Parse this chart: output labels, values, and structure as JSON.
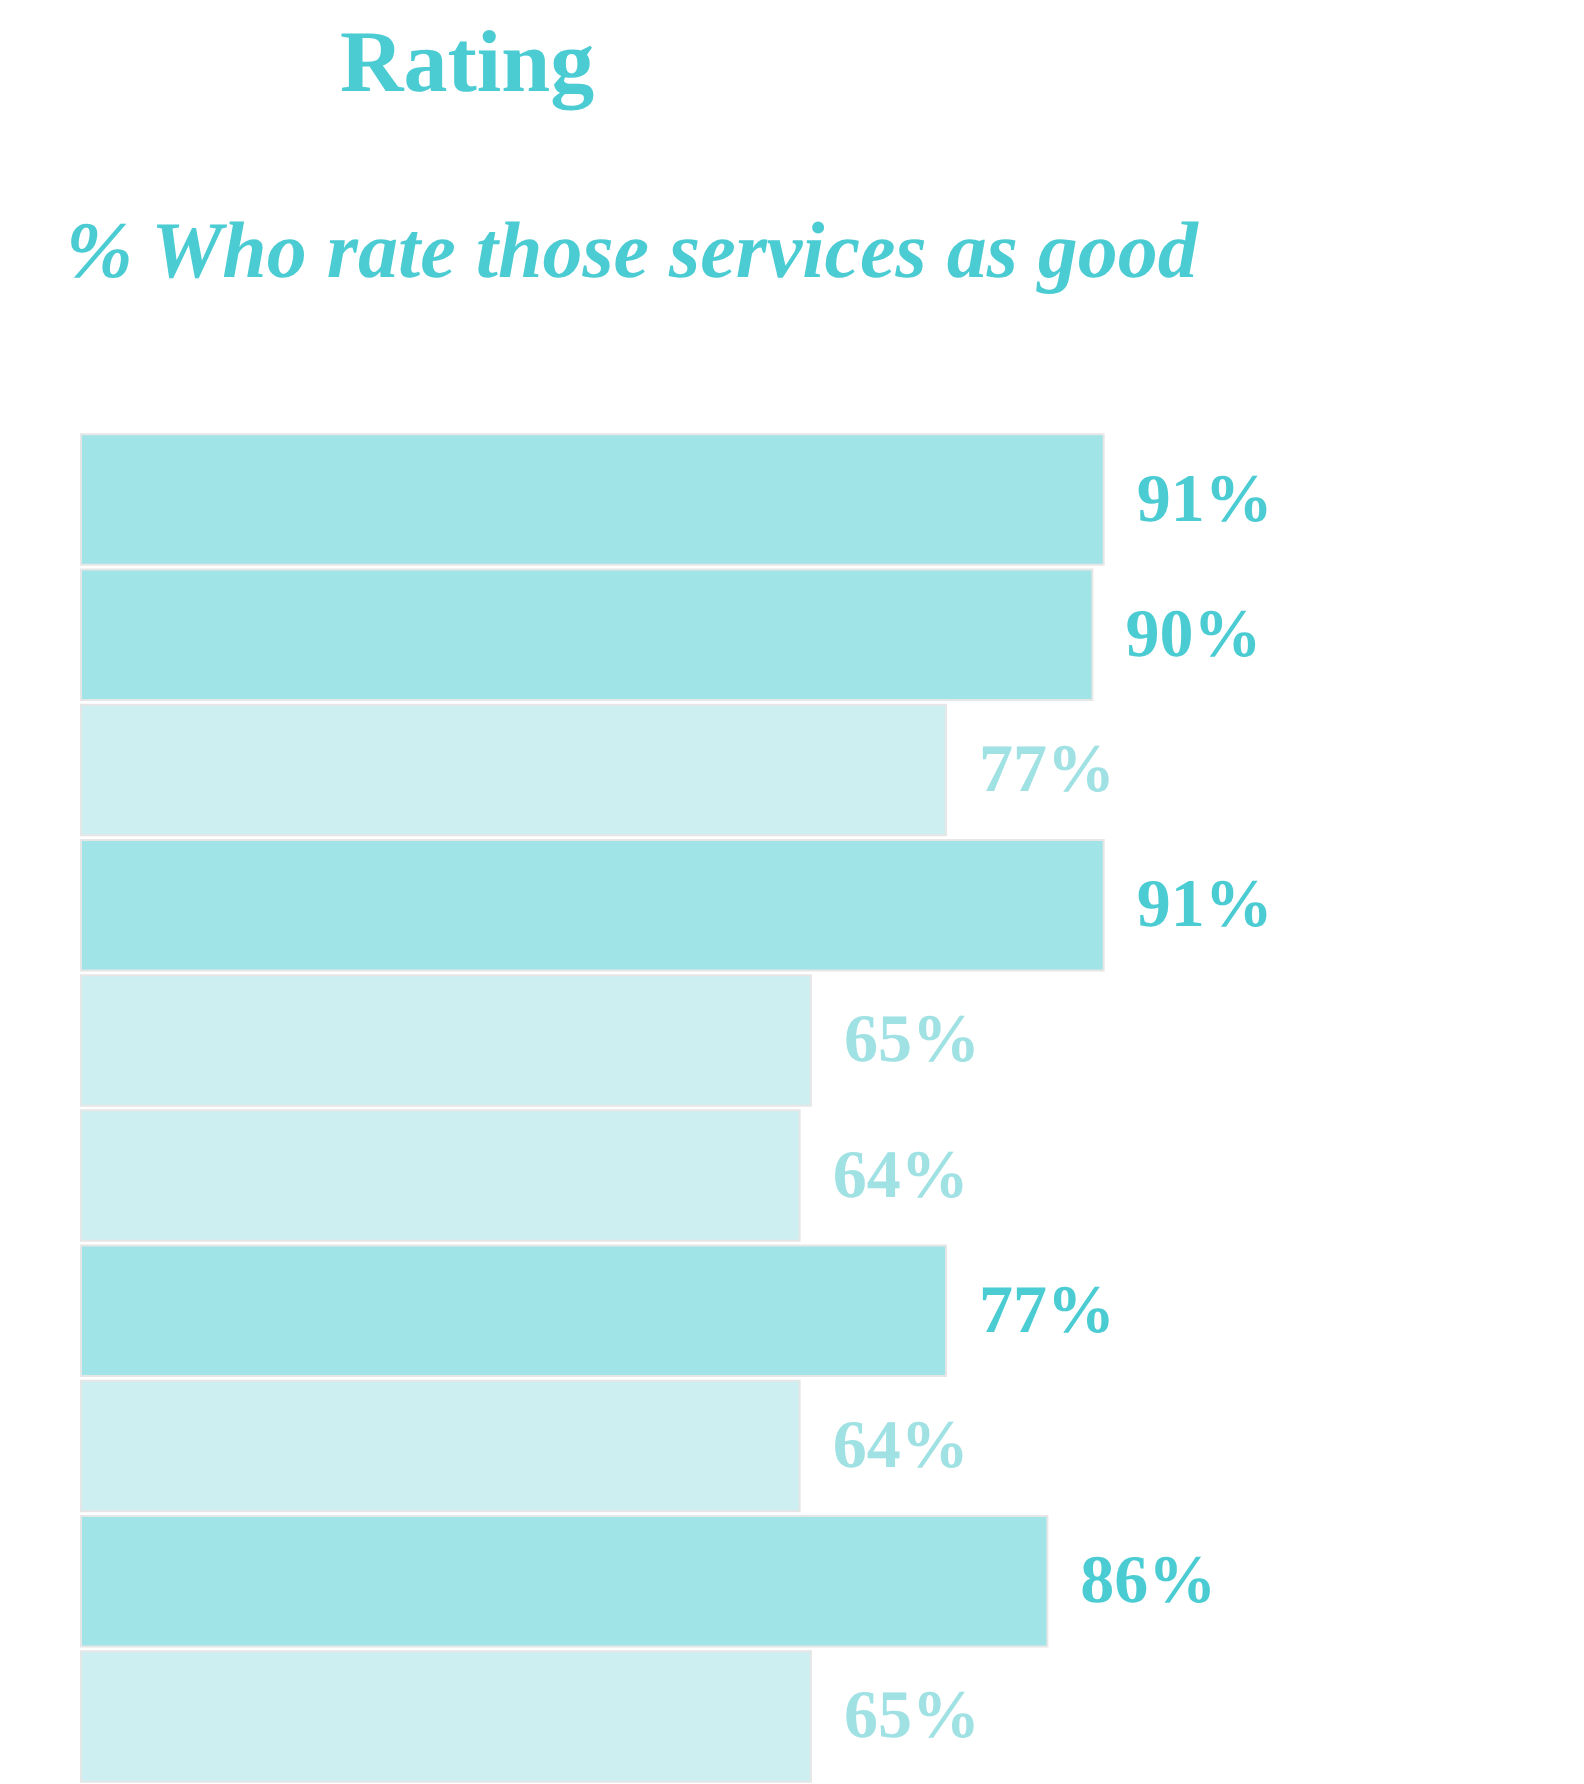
{
  "chart_data": {
    "type": "bar",
    "title": "Rating",
    "subtitle": "% Who rate those services as good",
    "orientation": "horizontal",
    "categories": [
      null,
      null,
      null,
      null,
      null,
      null,
      null,
      null,
      null,
      null
    ],
    "values": [
      91,
      90,
      77,
      91,
      65,
      64,
      77,
      64,
      86,
      65
    ],
    "colors": [
      "#a0e4e8",
      "#a0e4e8",
      "#cdeff1",
      "#a0e4e8",
      "#cdeff1",
      "#cdeff1",
      "#a0e4e8",
      "#cdeff1",
      "#a0e4e8",
      "#cdeff1"
    ],
    "data_labels": true,
    "value_labels": [
      "91%",
      "90%",
      "77%",
      "91%",
      "65%",
      "64%",
      "77%",
      "64%",
      "86%",
      "65%"
    ]
  }
}
